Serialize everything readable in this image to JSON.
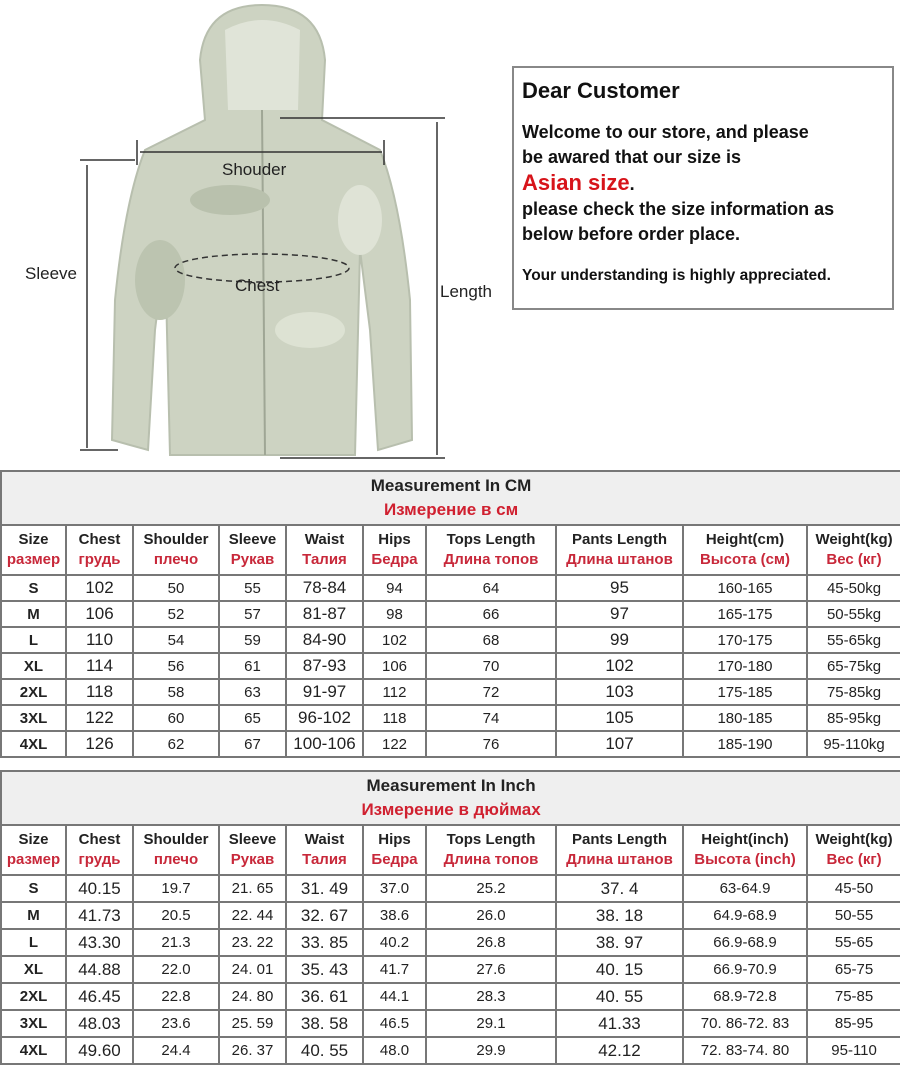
{
  "diagram": {
    "shoulder_label": "Shouder",
    "chest_label": "Chest",
    "sleeve_label": "Sleeve",
    "length_label": "Length"
  },
  "notice": {
    "title": "Dear Customer",
    "line1": "Welcome to our store, and please",
    "line2": "be awared that our size is",
    "asian": "Asian size",
    "asian_suffix": ".",
    "line3": "please check the size information as",
    "line4": "below before order place.",
    "footer": "Your understanding is highly appreciated."
  },
  "colors": {
    "accent_red": "#d7141a",
    "header_bg": "#efefef",
    "border": "#777777"
  },
  "headers": [
    {
      "en": "Size",
      "ru": "размер"
    },
    {
      "en": "Chest",
      "ru": "грудь"
    },
    {
      "en": "Shoulder",
      "ru": "плечо"
    },
    {
      "en": "Sleeve",
      "ru": "Рукав"
    },
    {
      "en": "Waist",
      "ru": "Талия"
    },
    {
      "en": "Hips",
      "ru": "Бедра"
    },
    {
      "en": "Tops Length",
      "ru": "Длина топов"
    },
    {
      "en": "Pants Length",
      "ru": "Длина штанов"
    }
  ],
  "cm_table": {
    "title": "Measurement In CM",
    "title_ru": "Измерение в см",
    "extra_headers": [
      {
        "en": "Height(cm)",
        "ru": "Высота (см)"
      },
      {
        "en": "Weight(kg)",
        "ru": "Вес (кг)"
      }
    ],
    "rows": [
      [
        "S",
        "102",
        "50",
        "55",
        "78-84",
        "94",
        "64",
        "95",
        "160-165",
        "45-50kg"
      ],
      [
        "M",
        "106",
        "52",
        "57",
        "81-87",
        "98",
        "66",
        "97",
        "165-175",
        "50-55kg"
      ],
      [
        "L",
        "110",
        "54",
        "59",
        "84-90",
        "102",
        "68",
        "99",
        "170-175",
        "55-65kg"
      ],
      [
        "XL",
        "114",
        "56",
        "61",
        "87-93",
        "106",
        "70",
        "102",
        "170-180",
        "65-75kg"
      ],
      [
        "2XL",
        "118",
        "58",
        "63",
        "91-97",
        "112",
        "72",
        "103",
        "175-185",
        "75-85kg"
      ],
      [
        "3XL",
        "122",
        "60",
        "65",
        "96-102",
        "118",
        "74",
        "105",
        "180-185",
        "85-95kg"
      ],
      [
        "4XL",
        "126",
        "62",
        "67",
        "100-106",
        "122",
        "76",
        "107",
        "185-190",
        "95-110kg"
      ]
    ]
  },
  "inch_table": {
    "title": "Measurement In Inch",
    "title_ru": "Измерение в дюймах",
    "extra_headers": [
      {
        "en": "Height(inch)",
        "ru": "Высота (inch)"
      },
      {
        "en": "Weight(kg)",
        "ru": "Вес (кг)"
      }
    ],
    "rows": [
      [
        "S",
        "40.15",
        "19.7",
        "21. 65",
        "31. 49",
        "37.0",
        "25.2",
        "37. 4",
        "63-64.9",
        "45-50"
      ],
      [
        "M",
        "41.73",
        "20.5",
        "22. 44",
        "32. 67",
        "38.6",
        "26.0",
        "38. 18",
        "64.9-68.9",
        "50-55"
      ],
      [
        "L",
        "43.30",
        "21.3",
        "23. 22",
        "33. 85",
        "40.2",
        "26.8",
        "38. 97",
        "66.9-68.9",
        "55-65"
      ],
      [
        "XL",
        "44.88",
        "22.0",
        "24. 01",
        "35. 43",
        "41.7",
        "27.6",
        "40. 15",
        "66.9-70.9",
        "65-75"
      ],
      [
        "2XL",
        "46.45",
        "22.8",
        "24. 80",
        "36. 61",
        "44.1",
        "28.3",
        "40. 55",
        "68.9-72.8",
        "75-85"
      ],
      [
        "3XL",
        "48.03",
        "23.6",
        "25. 59",
        "38. 58",
        "46.5",
        "29.1",
        "41.33",
        "70. 86-72. 83",
        "85-95"
      ],
      [
        "4XL",
        "49.60",
        "24.4",
        "26. 37",
        "40. 55",
        "48.0",
        "29.9",
        "42.12",
        "72. 83-74. 80",
        "95-110"
      ]
    ]
  }
}
